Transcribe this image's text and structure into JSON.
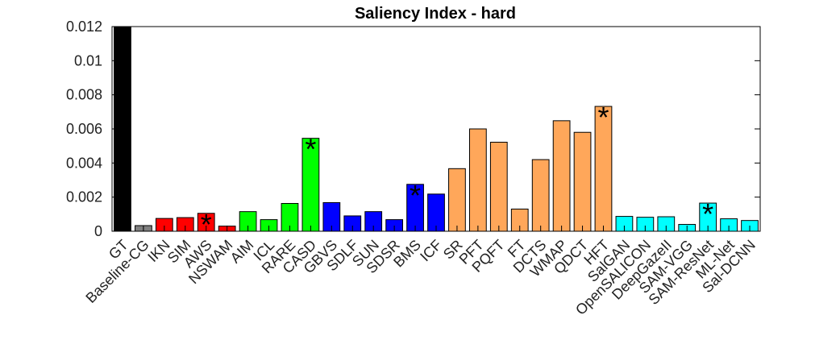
{
  "chart_data": {
    "type": "bar",
    "title": "Saliency Index - hard",
    "xlabel": "",
    "ylabel": "",
    "ylim": [
      0,
      0.012
    ],
    "yticks": [
      "0",
      "0.002",
      "0.004",
      "0.006",
      "0.008",
      "0.01",
      "0.012"
    ],
    "categories": [
      "GT",
      "Baseline-CG",
      "IKN",
      "SIM",
      "AWS",
      "NSWAM",
      "AIM",
      "ICL",
      "RARE",
      "CASD",
      "GBVS",
      "SDLF",
      "SUN",
      "SDSR",
      "BMS",
      "ICF",
      "SR",
      "PFT",
      "PQFT",
      "FT",
      "DCTS",
      "WMAP",
      "QDCT",
      "HFT",
      "SalGAN",
      "OpenSALICON",
      "DeepGazeII",
      "SAM-VGG",
      "SAM-ResNet",
      "ML-Net",
      "Sal-DCNN"
    ],
    "values": [
      0.012,
      0.00033,
      0.00075,
      0.0008,
      0.00105,
      0.0003,
      0.00115,
      0.00068,
      0.00163,
      0.00545,
      0.00168,
      0.0009,
      0.00115,
      0.00068,
      0.00275,
      0.00218,
      0.00367,
      0.006,
      0.00522,
      0.0013,
      0.0042,
      0.00648,
      0.0058,
      0.00732,
      0.00087,
      0.00082,
      0.00085,
      0.0004,
      0.00165,
      0.00073,
      0.00063
    ],
    "colors": [
      "#000000",
      "#808080",
      "#ff0000",
      "#ff0000",
      "#ff0000",
      "#ff0000",
      "#00ff00",
      "#00ff00",
      "#00ff00",
      "#00ff00",
      "#0000ff",
      "#0000ff",
      "#0000ff",
      "#0000ff",
      "#0000ff",
      "#0000ff",
      "#ffa75a",
      "#ffa75a",
      "#ffa75a",
      "#ffa75a",
      "#ffa75a",
      "#ffa75a",
      "#ffa75a",
      "#ffa75a",
      "#00ffff",
      "#00ffff",
      "#00ffff",
      "#00ffff",
      "#00ffff",
      "#00ffff",
      "#00ffff"
    ],
    "annotations": [
      {
        "category": "AWS",
        "text": "*"
      },
      {
        "category": "CASD",
        "text": "*"
      },
      {
        "category": "BMS",
        "text": "*"
      },
      {
        "category": "HFT",
        "text": "*"
      },
      {
        "category": "SAM-ResNet",
        "text": "*"
      }
    ],
    "grid": false,
    "legend": "none"
  }
}
